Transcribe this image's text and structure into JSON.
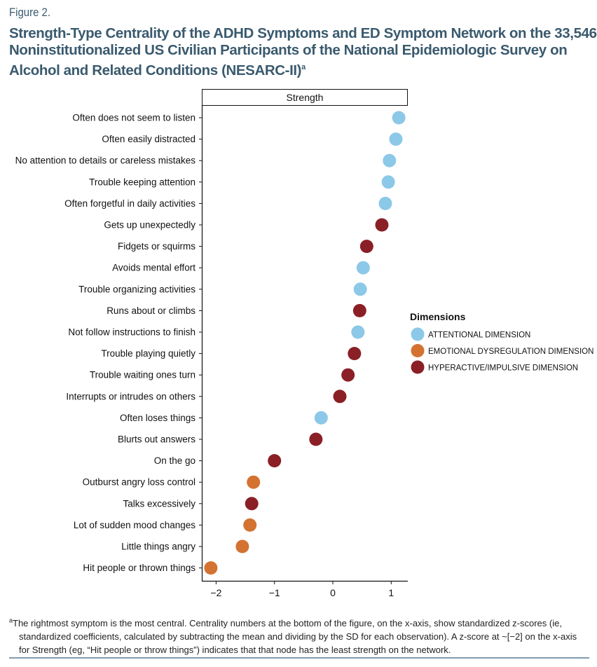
{
  "figure_label": "Figure 2.",
  "title": "Strength-Type Centrality of the ADHD Symptoms and ED Symptom Network on the 33,546 Noninstitutionalized US Civilian Participants of the National Epidemiologic Survey on Alcohol and Related Conditions (NESARC-II)",
  "title_superscript": "a",
  "footnote": {
    "marker": "a",
    "line1": "The rightmost symptom is the most central. Centrality numbers at the bottom of the figure, on the x-axis, show standardized z-scores (ie,",
    "line2": "standardized coefficients, calculated by subtracting the mean and dividing by the SD for each observation). A z-score at ~[−2] on the x-axis",
    "line3": "for Strength (eg, “Hit people or throw things”) indicates that that node has the least strength on the network."
  },
  "chart_data": {
    "type": "scatter",
    "title": "Strength",
    "xlabel": "",
    "ylabel": "",
    "xlim": [
      -2.2,
      1.3
    ],
    "xticks": [
      -2,
      -1,
      0,
      1
    ],
    "xtick_labels": [
      "−2",
      "−1",
      "0",
      "1"
    ],
    "grid": false,
    "legend": {
      "title": "Dimensions",
      "position": "right",
      "entries": [
        {
          "key": "attentional",
          "label": "ATTENTIONAL DIMENSION",
          "color": "#8cc8e8"
        },
        {
          "key": "emotional",
          "label": "EMOTIONAL DYSREGULATION DIMENSION",
          "color": "#d47232"
        },
        {
          "key": "hyperactive",
          "label": "HYPERACTIVE/IMPULSIVE DIMENSION",
          "color": "#8b1f26"
        }
      ]
    },
    "points": [
      {
        "label": "Often does not seem to listen",
        "value": 1.13,
        "dimension": "attentional"
      },
      {
        "label": "Often easily distracted",
        "value": 1.08,
        "dimension": "attentional"
      },
      {
        "label": "No attention to details or careless mistakes",
        "value": 0.97,
        "dimension": "attentional"
      },
      {
        "label": "Trouble keeping attention",
        "value": 0.95,
        "dimension": "attentional"
      },
      {
        "label": "Often forgetful in daily activities",
        "value": 0.9,
        "dimension": "attentional"
      },
      {
        "label": "Gets up unexpectedly",
        "value": 0.84,
        "dimension": "hyperactive"
      },
      {
        "label": "Fidgets or squirms",
        "value": 0.58,
        "dimension": "hyperactive"
      },
      {
        "label": "Avoids mental effort",
        "value": 0.52,
        "dimension": "attentional"
      },
      {
        "label": "Trouble organizing activities",
        "value": 0.47,
        "dimension": "attentional"
      },
      {
        "label": "Runs about or climbs",
        "value": 0.46,
        "dimension": "hyperactive"
      },
      {
        "label": "Not follow instructions to finish",
        "value": 0.43,
        "dimension": "attentional"
      },
      {
        "label": "Trouble playing quietly",
        "value": 0.37,
        "dimension": "hyperactive"
      },
      {
        "label": "Trouble waiting ones turn",
        "value": 0.26,
        "dimension": "hyperactive"
      },
      {
        "label": "Interrupts or intrudes on others",
        "value": 0.12,
        "dimension": "hyperactive"
      },
      {
        "label": "Often loses things",
        "value": -0.2,
        "dimension": "attentional"
      },
      {
        "label": "Blurts out answers",
        "value": -0.29,
        "dimension": "hyperactive"
      },
      {
        "label": "On the go",
        "value": -1.0,
        "dimension": "hyperactive"
      },
      {
        "label": "Outburst angry loss control",
        "value": -1.36,
        "dimension": "emotional"
      },
      {
        "label": "Talks excessively",
        "value": -1.39,
        "dimension": "hyperactive"
      },
      {
        "label": "Lot of sudden mood changes",
        "value": -1.42,
        "dimension": "emotional"
      },
      {
        "label": "Little things angry",
        "value": -1.55,
        "dimension": "emotional"
      },
      {
        "label": "Hit people or thrown things",
        "value": -2.09,
        "dimension": "emotional"
      }
    ]
  }
}
